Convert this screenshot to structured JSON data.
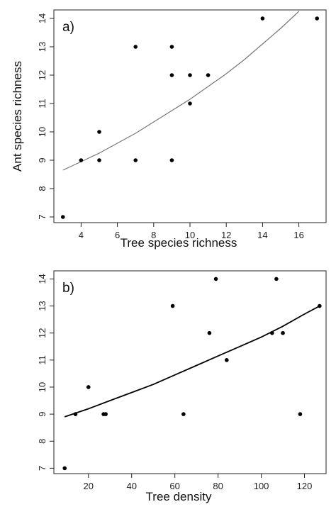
{
  "chart_data": [
    {
      "type": "scatter",
      "panel_label": "a)",
      "xlabel": "Tree species richness",
      "ylabel": "Ant species richness",
      "xlim": [
        2.5,
        17.5
      ],
      "ylim": [
        6.8,
        14.3
      ],
      "xticks": [
        4,
        6,
        8,
        10,
        12,
        14,
        16
      ],
      "yticks": [
        7,
        8,
        9,
        10,
        11,
        12,
        13,
        14
      ],
      "points": [
        {
          "x": 3,
          "y": 7
        },
        {
          "x": 4,
          "y": 9
        },
        {
          "x": 5,
          "y": 9
        },
        {
          "x": 5,
          "y": 10
        },
        {
          "x": 7,
          "y": 9
        },
        {
          "x": 7,
          "y": 13
        },
        {
          "x": 9,
          "y": 9
        },
        {
          "x": 9,
          "y": 12
        },
        {
          "x": 9,
          "y": 13
        },
        {
          "x": 10,
          "y": 11
        },
        {
          "x": 10,
          "y": 12
        },
        {
          "x": 11,
          "y": 12
        },
        {
          "x": 14,
          "y": 14
        },
        {
          "x": 17,
          "y": 14
        }
      ],
      "fit_curve": [
        {
          "x": 3,
          "y": 8.65
        },
        {
          "x": 4,
          "y": 8.95
        },
        {
          "x": 5,
          "y": 9.25
        },
        {
          "x": 6,
          "y": 9.6
        },
        {
          "x": 7,
          "y": 9.95
        },
        {
          "x": 8,
          "y": 10.35
        },
        {
          "x": 9,
          "y": 10.75
        },
        {
          "x": 10,
          "y": 11.15
        },
        {
          "x": 11,
          "y": 11.6
        },
        {
          "x": 12,
          "y": 12.05
        },
        {
          "x": 13,
          "y": 12.55
        },
        {
          "x": 14,
          "y": 13.1
        },
        {
          "x": 15,
          "y": 13.65
        },
        {
          "x": 16,
          "y": 14.25
        }
      ],
      "fit_color": "#777777",
      "point_color": "#000000"
    },
    {
      "type": "scatter",
      "panel_label": "b)",
      "xlabel": "Tree density",
      "ylabel": "",
      "xlim": [
        4,
        130
      ],
      "ylim": [
        6.8,
        14.3
      ],
      "xticks": [
        20,
        40,
        60,
        80,
        100,
        120
      ],
      "yticks": [
        7,
        8,
        9,
        10,
        11,
        12,
        13,
        14
      ],
      "points": [
        {
          "x": 9,
          "y": 7
        },
        {
          "x": 14,
          "y": 9
        },
        {
          "x": 20,
          "y": 10
        },
        {
          "x": 27,
          "y": 9
        },
        {
          "x": 28,
          "y": 9
        },
        {
          "x": 59,
          "y": 13
        },
        {
          "x": 64,
          "y": 9
        },
        {
          "x": 76,
          "y": 12
        },
        {
          "x": 79,
          "y": 14
        },
        {
          "x": 84,
          "y": 11
        },
        {
          "x": 105,
          "y": 12
        },
        {
          "x": 107,
          "y": 14
        },
        {
          "x": 110,
          "y": 12
        },
        {
          "x": 118,
          "y": 9
        },
        {
          "x": 127,
          "y": 13
        }
      ],
      "fit_curve": [
        {
          "x": 9,
          "y": 8.9
        },
        {
          "x": 20,
          "y": 9.2
        },
        {
          "x": 30,
          "y": 9.5
        },
        {
          "x": 40,
          "y": 9.8
        },
        {
          "x": 50,
          "y": 10.1
        },
        {
          "x": 60,
          "y": 10.45
        },
        {
          "x": 70,
          "y": 10.8
        },
        {
          "x": 80,
          "y": 11.15
        },
        {
          "x": 90,
          "y": 11.5
        },
        {
          "x": 100,
          "y": 11.85
        },
        {
          "x": 110,
          "y": 12.25
        },
        {
          "x": 120,
          "y": 12.7
        },
        {
          "x": 127,
          "y": 13.0
        }
      ],
      "fit_color": "#000000",
      "point_color": "#000000"
    }
  ]
}
